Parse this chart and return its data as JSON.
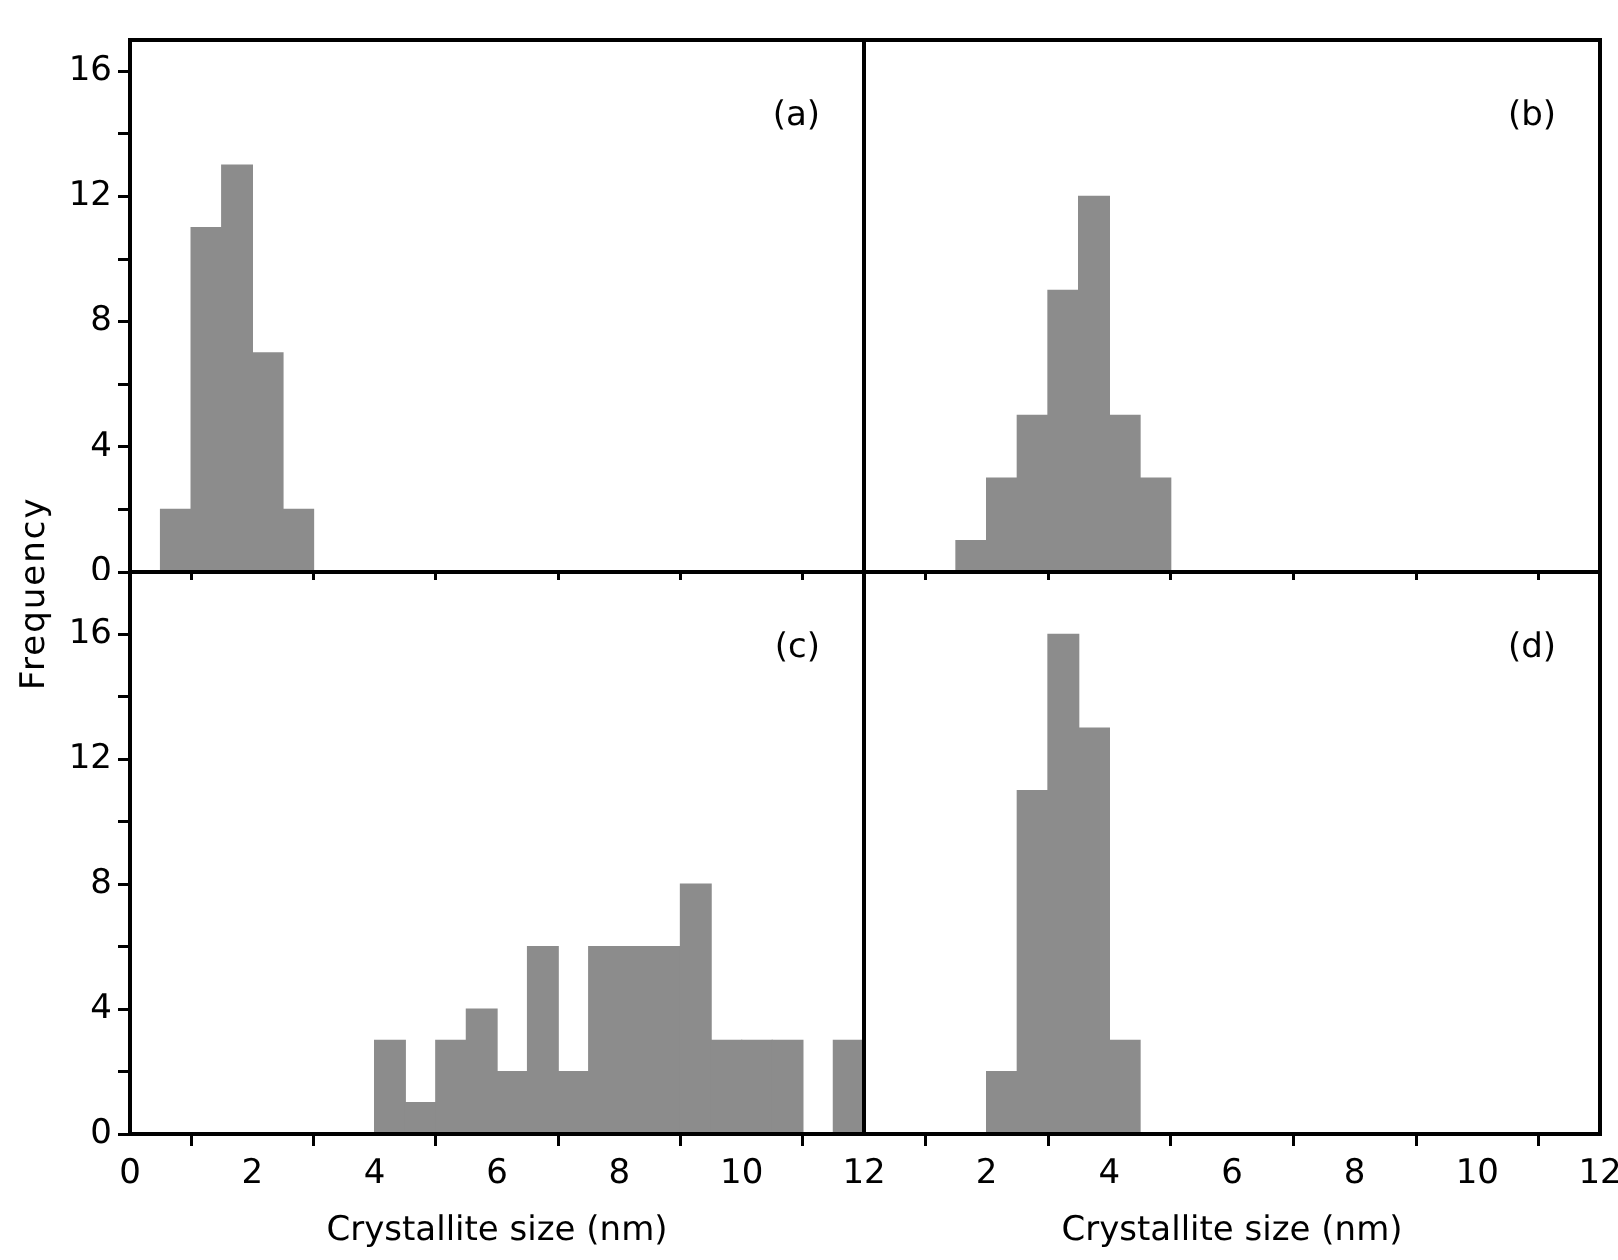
{
  "chart_data": [
    {
      "type": "histogram",
      "ylabel": "Frequency",
      "bins": [
        0.5,
        1,
        1.5,
        2,
        2.5,
        3
      ],
      "values": [
        2,
        11,
        13,
        7,
        2
      ],
      "color": "#8c8c8c",
      "xlim": [
        0,
        12
      ],
      "xticks": [
        0,
        2,
        4,
        6,
        8,
        10,
        12
      ],
      "ylim": [
        0,
        17
      ],
      "yticks": [
        0,
        {
          "value": 2,
          "label": null
        },
        4,
        {
          "value": 6,
          "label": null
        },
        8,
        {
          "value": 10,
          "label": null
        },
        12,
        {
          "value": 14,
          "label": null
        },
        16
      ],
      "tick_labels": "y",
      "annotations": [
        "(a)"
      ]
    },
    {
      "type": "histogram",
      "bins": [
        1.5,
        2,
        2.5,
        3,
        3.5,
        4,
        4.5,
        5
      ],
      "values": [
        1,
        3,
        5,
        9,
        12,
        5,
        3
      ],
      "color": "#8c8c8c",
      "xlim": [
        0,
        12
      ],
      "xticks": [
        2,
        4,
        6,
        8,
        10,
        12
      ],
      "ylim": [
        0,
        17
      ],
      "tick_labels": false,
      "annotations": [
        "(b)"
      ]
    },
    {
      "type": "histogram",
      "xlabel": "Crystallite size (nm)",
      "bins": [
        4,
        4.5,
        5,
        5.5,
        6,
        6.5,
        7,
        7.5,
        8,
        8.5,
        9,
        9.5,
        10,
        10.5,
        11,
        11.5,
        12
      ],
      "values": [
        3,
        1,
        3,
        4,
        2,
        6,
        2,
        6,
        6,
        6,
        8,
        3,
        3,
        3,
        0,
        3
      ],
      "color": "#8c8c8c",
      "xlim": [
        0,
        12
      ],
      "xticks": [
        0,
        2,
        4,
        6,
        8,
        10,
        12
      ],
      "ylim": [
        0,
        18
      ],
      "yticks": [
        0,
        {
          "value": 2,
          "label": null
        },
        4,
        {
          "value": 6,
          "label": null
        },
        8,
        {
          "value": 10,
          "label": null
        },
        12,
        {
          "value": 14,
          "label": null
        },
        16
      ],
      "annotations": [
        "(c)"
      ]
    },
    {
      "type": "histogram",
      "xlabel": "Crystallite size (nm)",
      "bins": [
        2,
        2.5,
        3,
        3.5,
        4,
        4.5
      ],
      "values": [
        2,
        11,
        16,
        13,
        3
      ],
      "color": "#8c8c8c",
      "xlim": [
        0,
        12
      ],
      "xticks": [
        2,
        4,
        6,
        8,
        10,
        12
      ],
      "ylim": [
        0,
        18
      ],
      "tick_labels": "x",
      "annotations": [
        "(d)"
      ]
    }
  ]
}
